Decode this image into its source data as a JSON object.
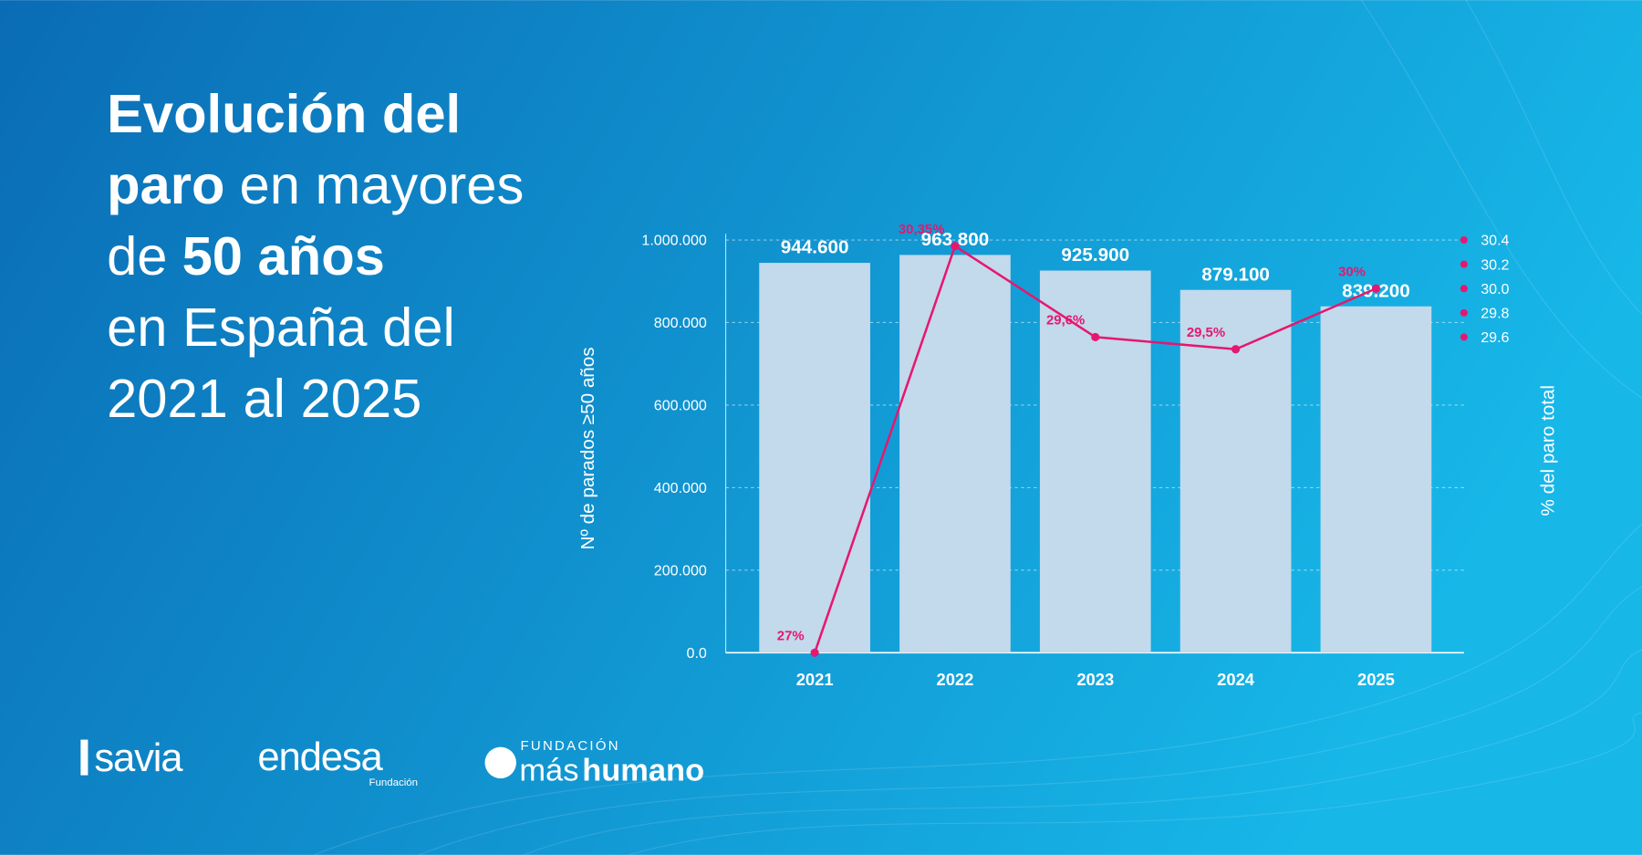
{
  "chart_data": {
    "type": "bar_line",
    "title_lines": [
      [
        {
          "text": "Evolución del",
          "bold": true
        }
      ],
      [
        {
          "text": "paro",
          "bold": true
        },
        {
          "text": "en mayores",
          "bold": false
        }
      ],
      [
        {
          "text": "de",
          "bold": false
        },
        {
          "text": "50 años",
          "bold": true
        }
      ],
      [
        {
          "text": "en España del",
          "bold": false
        }
      ],
      [
        {
          "text": "2021 al 2025",
          "bold": false
        }
      ]
    ],
    "y_label": "Nº de parados ≥50 años",
    "y2_label": "% del paro total",
    "categories": [
      "2021",
      "2022",
      "2023",
      "2024",
      "2025"
    ],
    "series": [
      {
        "name": "Nº de parados ≥50 años",
        "type": "bar",
        "color": "#c3d9ec",
        "values": [
          944600,
          963800,
          925900,
          879100,
          839200
        ],
        "value_labels": [
          "944.600",
          "963.800",
          "925.900",
          "879.100",
          "839.200"
        ]
      },
      {
        "name": "% del paro total",
        "type": "line",
        "axis": "y2",
        "color": "#e6176f",
        "values": [
          27,
          30.35,
          29.6,
          29.5,
          30
        ],
        "value_labels": [
          "27%",
          "30,35%",
          "29,6%",
          "29,5%",
          "30%"
        ]
      }
    ],
    "ylim": [
      0,
      1000000
    ],
    "yticks": [
      {
        "value": 0,
        "label": "0.0"
      },
      {
        "value": 200000,
        "label": "200.000"
      },
      {
        "value": 400000,
        "label": "400.000"
      },
      {
        "value": 600000,
        "label": "600.000"
      },
      {
        "value": 800000,
        "label": "800.000"
      },
      {
        "value": 1000000,
        "label": "1.000.000"
      }
    ],
    "y2lim": [
      27,
      30.4
    ],
    "y2ticks": [
      29.6,
      29.8,
      {
        "value": 30,
        "label": "30.0"
      },
      30.2,
      30.4
    ],
    "grid": true
  },
  "logos": {
    "savia": "savia",
    "endesa": "endesa",
    "endesa_sub": "Fundación",
    "mh_top": "FUNDACIÓN",
    "mh_light": "más",
    "mh_bold": "humano"
  }
}
